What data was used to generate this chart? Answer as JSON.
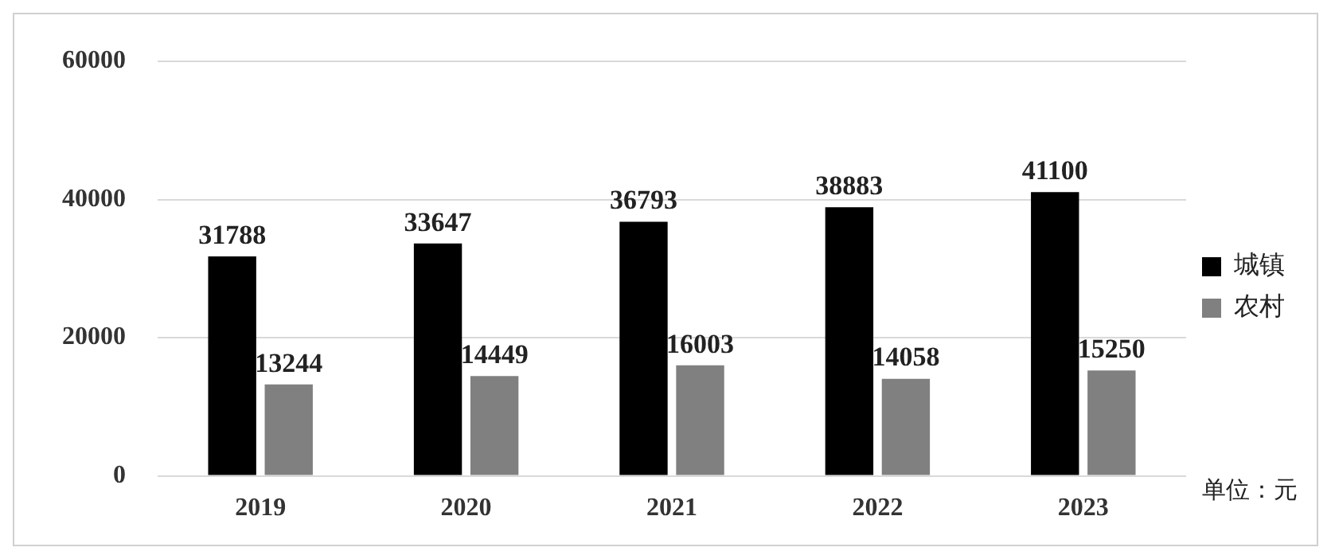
{
  "chart_data": {
    "type": "bar",
    "categories": [
      "2019",
      "2020",
      "2021",
      "2022",
      "2023"
    ],
    "series": [
      {
        "name": "城镇",
        "color": "#000000",
        "values": [
          31788,
          33647,
          36793,
          38883,
          41100
        ]
      },
      {
        "name": "农村",
        "color": "#808080",
        "values": [
          13244,
          14449,
          16003,
          14058,
          15250
        ]
      }
    ],
    "ylim": [
      0,
      60000
    ],
    "yticks": [
      0,
      20000,
      40000,
      60000
    ],
    "grid": "y",
    "legend": "right",
    "data_labels": true,
    "annotations": [
      "单位：元"
    ]
  }
}
